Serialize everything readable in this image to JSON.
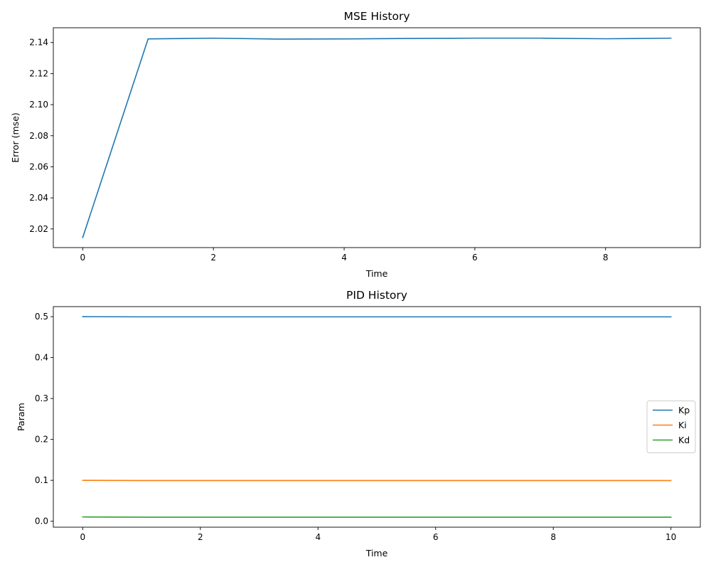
{
  "chart_data": [
    {
      "type": "line",
      "title": "MSE History",
      "xlabel": "Time",
      "ylabel": "Error (mse)",
      "xlim": [
        -0.45,
        9.45
      ],
      "ylim": [
        2.008,
        2.1495
      ],
      "xticks": [
        0,
        2,
        4,
        6,
        8
      ],
      "xtick_labels": [
        "0",
        "2",
        "4",
        "6",
        "8"
      ],
      "yticks": [
        2.02,
        2.04,
        2.06,
        2.08,
        2.1,
        2.12,
        2.14
      ],
      "ytick_labels": [
        "2.02",
        "2.04",
        "2.06",
        "2.08",
        "2.10",
        "2.12",
        "2.14"
      ],
      "grid": false,
      "series": [
        {
          "color": "#1f77b4",
          "x": [
            0,
            1,
            2,
            3,
            4,
            5,
            6,
            7,
            8,
            9
          ],
          "y": [
            2.0145,
            2.1423,
            2.1428,
            2.1422,
            2.1423,
            2.1426,
            2.1428,
            2.1428,
            2.1424,
            2.1428
          ]
        }
      ]
    },
    {
      "type": "line",
      "title": "PID History",
      "xlabel": "Time",
      "ylabel": "Param",
      "xlim": [
        -0.5,
        10.5
      ],
      "ylim": [
        -0.0145,
        0.5245
      ],
      "xticks": [
        0,
        2,
        4,
        6,
        8,
        10
      ],
      "xtick_labels": [
        "0",
        "2",
        "4",
        "6",
        "8",
        "10"
      ],
      "yticks": [
        0.0,
        0.1,
        0.2,
        0.3,
        0.4,
        0.5
      ],
      "ytick_labels": [
        "0.0",
        "0.1",
        "0.2",
        "0.3",
        "0.4",
        "0.5"
      ],
      "grid": false,
      "legend_position": "center-right",
      "series": [
        {
          "name": "Kp",
          "color": "#1f77b4",
          "x": [
            0,
            1,
            2,
            3,
            4,
            5,
            6,
            7,
            8,
            9,
            10
          ],
          "y": [
            0.5,
            0.4995,
            0.4995,
            0.4995,
            0.4995,
            0.4995,
            0.4995,
            0.4995,
            0.4995,
            0.4995,
            0.4995
          ]
        },
        {
          "name": "Ki",
          "color": "#ff7f0e",
          "x": [
            0,
            1,
            2,
            3,
            4,
            5,
            6,
            7,
            8,
            9,
            10
          ],
          "y": [
            0.1,
            0.0995,
            0.0995,
            0.0995,
            0.0995,
            0.0995,
            0.0995,
            0.0995,
            0.0995,
            0.0995,
            0.0995
          ]
        },
        {
          "name": "Kd",
          "color": "#2ca02c",
          "x": [
            0,
            1,
            2,
            3,
            4,
            5,
            6,
            7,
            8,
            9,
            10
          ],
          "y": [
            0.0105,
            0.01,
            0.01,
            0.01,
            0.01,
            0.01,
            0.01,
            0.01,
            0.01,
            0.01,
            0.01
          ]
        }
      ]
    }
  ]
}
